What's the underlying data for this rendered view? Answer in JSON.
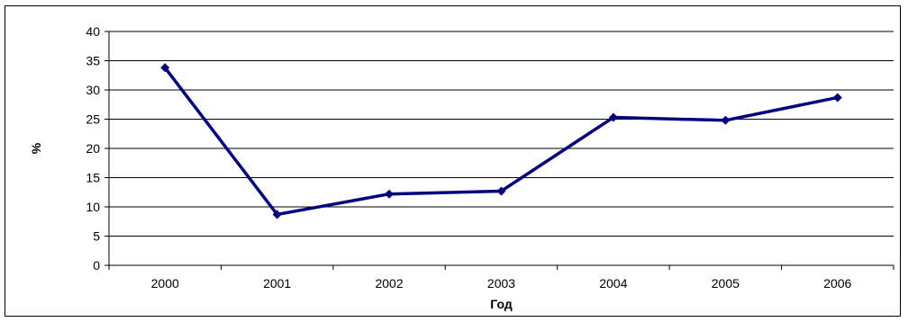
{
  "chart_data": {
    "type": "line",
    "title": "",
    "xlabel": "Год",
    "ylabel": "%",
    "categories": [
      "2000",
      "2001",
      "2002",
      "2003",
      "2004",
      "2005",
      "2006"
    ],
    "series": [
      {
        "values": [
          33.8,
          8.7,
          12.2,
          12.7,
          25.3,
          24.8,
          28.7
        ]
      }
    ],
    "ylim": [
      0,
      40
    ],
    "yticks": [
      "0",
      "5",
      "10",
      "15",
      "20",
      "25",
      "30",
      "35",
      "40"
    ],
    "grid": "horizontal",
    "legend": "none",
    "line_color": "#000080",
    "grid_color": "#000000"
  }
}
